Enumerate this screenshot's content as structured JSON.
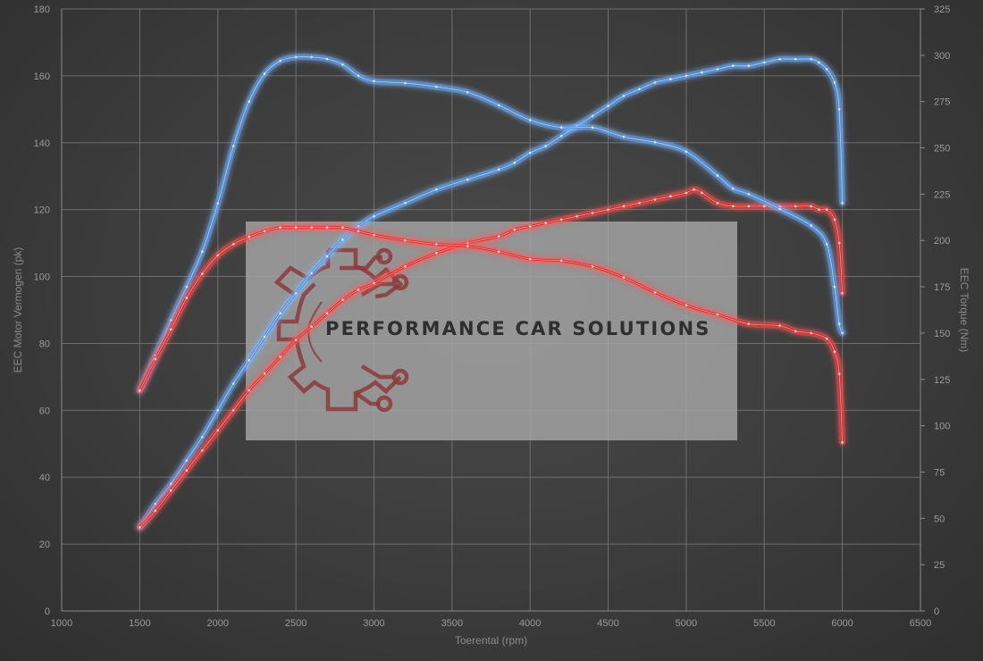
{
  "chart_data": {
    "type": "line",
    "title": "",
    "xlabel": "Toerental (rpm)",
    "ylabel_left": "EEC Motor Vermogen (pk)",
    "ylabel_right": "EEC Torque (Nm)",
    "xlim": [
      1000,
      6500
    ],
    "ylim_left": [
      0,
      180
    ],
    "ylim_right": [
      0,
      325
    ],
    "x_ticks": [
      "1000",
      "1500",
      "2000",
      "2500",
      "3000",
      "3500",
      "4000",
      "4500",
      "5000",
      "5500",
      "6000",
      "6500"
    ],
    "y_left_ticks": [
      "0",
      "20",
      "40",
      "60",
      "80",
      "100",
      "120",
      "140",
      "160",
      "180"
    ],
    "y_right_ticks": [
      "0",
      "25",
      "50",
      "75",
      "100",
      "125",
      "150",
      "175",
      "200",
      "225",
      "250",
      "275",
      "300",
      "325"
    ],
    "grid": true,
    "legend": "none",
    "series": [
      {
        "axis": "left",
        "color": "#4a90e2",
        "glow": "#7fb6ff",
        "x": [
          1500,
          1600,
          1700,
          1800,
          1900,
          2000,
          2100,
          2200,
          2300,
          2400,
          2500,
          2600,
          2700,
          2800,
          2900,
          3000,
          3200,
          3400,
          3600,
          3800,
          3900,
          4000,
          4100,
          4200,
          4300,
          4400,
          4500,
          4600,
          4700,
          4800,
          4900,
          5000,
          5100,
          5200,
          5300,
          5400,
          5500,
          5600,
          5700,
          5800,
          5850,
          5900,
          5950,
          5980,
          6000
        ],
        "y": [
          25,
          32,
          38,
          45,
          52,
          60,
          68,
          75,
          82,
          89,
          95,
          101,
          106,
          111,
          115,
          118,
          122,
          126,
          129,
          132,
          134,
          137,
          139,
          142,
          145,
          148,
          151,
          154,
          156,
          158,
          159,
          160,
          161,
          162,
          163,
          163,
          164,
          165,
          165,
          165,
          164,
          162,
          158,
          150,
          122
        ]
      },
      {
        "axis": "left",
        "color": "#e02424",
        "glow": "#ff5a5a",
        "x": [
          1500,
          1600,
          1700,
          1800,
          1900,
          2000,
          2100,
          2200,
          2300,
          2400,
          2500,
          2600,
          2700,
          2800,
          2900,
          3000,
          3200,
          3400,
          3600,
          3800,
          3900,
          4000,
          4100,
          4200,
          4300,
          4400,
          4500,
          4600,
          4700,
          4800,
          4900,
          5000,
          5050,
          5100,
          5200,
          5300,
          5400,
          5500,
          5600,
          5700,
          5800,
          5850,
          5900,
          5950,
          5980,
          6000
        ],
        "y": [
          25,
          30,
          36,
          42,
          48,
          54,
          60,
          66,
          71,
          76,
          81,
          85,
          89,
          93,
          96,
          98,
          103,
          107,
          110,
          112,
          114,
          115,
          116,
          117,
          118,
          119,
          120,
          121,
          122,
          123,
          124,
          125,
          126,
          125,
          122,
          121,
          121,
          121,
          121,
          121,
          121,
          120,
          120,
          117,
          110,
          95
        ]
      },
      {
        "axis": "right",
        "color": "#4a90e2",
        "glow": "#7fb6ff",
        "x": [
          1500,
          1600,
          1700,
          1800,
          1900,
          2000,
          2100,
          2200,
          2300,
          2400,
          2500,
          2600,
          2700,
          2800,
          2900,
          3000,
          3200,
          3400,
          3600,
          3800,
          4000,
          4200,
          4400,
          4600,
          4800,
          5000,
          5200,
          5300,
          5400,
          5600,
          5800,
          5900,
          5950,
          5980,
          6000
        ],
        "y": [
          119,
          138,
          157,
          175,
          194,
          220,
          251,
          275,
          290,
          297,
          299,
          299,
          298,
          295,
          289,
          286,
          285,
          283,
          280,
          273,
          265,
          261,
          261,
          256,
          253,
          248,
          235,
          228,
          225,
          217,
          208,
          198,
          175,
          155,
          150
        ]
      },
      {
        "axis": "right",
        "color": "#e02424",
        "glow": "#ff5a5a",
        "x": [
          1500,
          1600,
          1700,
          1800,
          1900,
          2000,
          2100,
          2200,
          2300,
          2400,
          2500,
          2600,
          2700,
          2800,
          2900,
          3000,
          3200,
          3400,
          3600,
          3800,
          4000,
          4200,
          4400,
          4600,
          4800,
          5000,
          5200,
          5400,
          5600,
          5700,
          5800,
          5900,
          5950,
          5980,
          6000
        ],
        "y": [
          119,
          136,
          152,
          169,
          182,
          192,
          198,
          202,
          205,
          207,
          207,
          207,
          207,
          207,
          205,
          203,
          200,
          198,
          197,
          194,
          190,
          189,
          186,
          180,
          172,
          165,
          160,
          155,
          154,
          151,
          150,
          147,
          140,
          128,
          91
        ]
      }
    ]
  },
  "watermark": {
    "text": "PERFORMANCE CAR SOLUTIONS",
    "logo_icon": "gear-circuit-logo-icon",
    "panel_color": "#a6a6a6",
    "logo_color": "#8c3a3a"
  }
}
